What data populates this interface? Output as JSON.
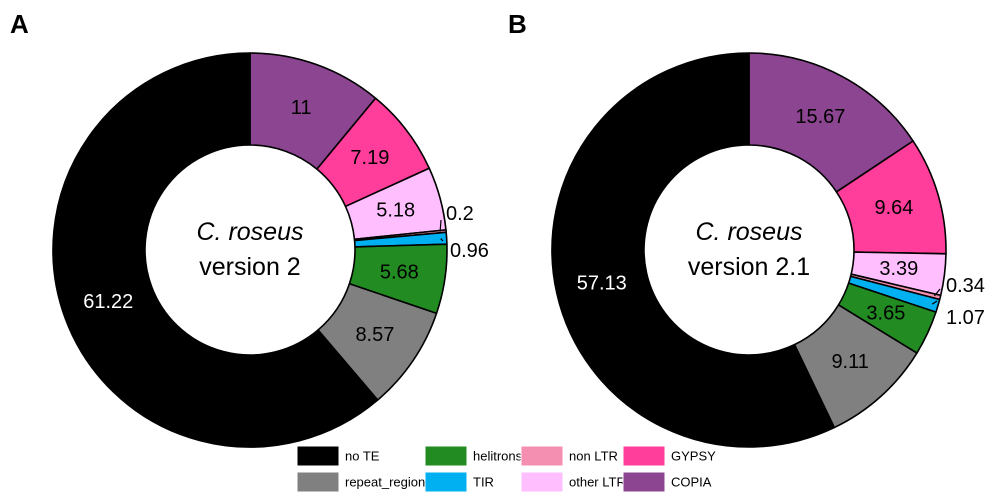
{
  "legend": [
    {
      "label": "no TE",
      "color": "#000000"
    },
    {
      "label": "repeat_region",
      "color": "#808080"
    },
    {
      "label": "helitrons",
      "color": "#228b22"
    },
    {
      "label": "TIR",
      "color": "#00b0f0"
    },
    {
      "label": "non LTR",
      "color": "#f48fb1"
    },
    {
      "label": "other LTR",
      "color": "#ffbfff"
    },
    {
      "label": "GYPSY",
      "color": "#ff3d9a"
    },
    {
      "label": "COPIA",
      "color": "#8b4591"
    }
  ],
  "chart_data": [
    {
      "type": "pie",
      "panel": "A",
      "center_label": [
        "C. roseus",
        "version 2"
      ],
      "slices": [
        {
          "category": "COPIA",
          "value": 11,
          "label": "11"
        },
        {
          "category": "GYPSY",
          "value": 7.19,
          "label": "7.19"
        },
        {
          "category": "other LTR",
          "value": 5.18,
          "label": "5.18"
        },
        {
          "category": "non LTR",
          "value": 0.2,
          "label": "0.2"
        },
        {
          "category": "TIR",
          "value": 0.96,
          "label": "0.96"
        },
        {
          "category": "helitrons",
          "value": 5.68,
          "label": "5.68"
        },
        {
          "category": "repeat_region",
          "value": 8.57,
          "label": "8.57"
        },
        {
          "category": "no TE",
          "value": 61.22,
          "label": "61.22"
        }
      ]
    },
    {
      "type": "pie",
      "panel": "B",
      "center_label": [
        "C. roseus",
        "version 2.1"
      ],
      "slices": [
        {
          "category": "COPIA",
          "value": 15.67,
          "label": "15.67"
        },
        {
          "category": "GYPSY",
          "value": 9.64,
          "label": "9.64"
        },
        {
          "category": "other LTR",
          "value": 3.39,
          "label": "3.39"
        },
        {
          "category": "non LTR",
          "value": 0.34,
          "label": "0.34"
        },
        {
          "category": "TIR",
          "value": 1.07,
          "label": "1.07"
        },
        {
          "category": "helitrons",
          "value": 3.65,
          "label": "3.65"
        },
        {
          "category": "repeat_region",
          "value": 9.11,
          "label": "9.11"
        },
        {
          "category": "no TE",
          "value": 57.13,
          "label": "57.13"
        }
      ]
    }
  ]
}
